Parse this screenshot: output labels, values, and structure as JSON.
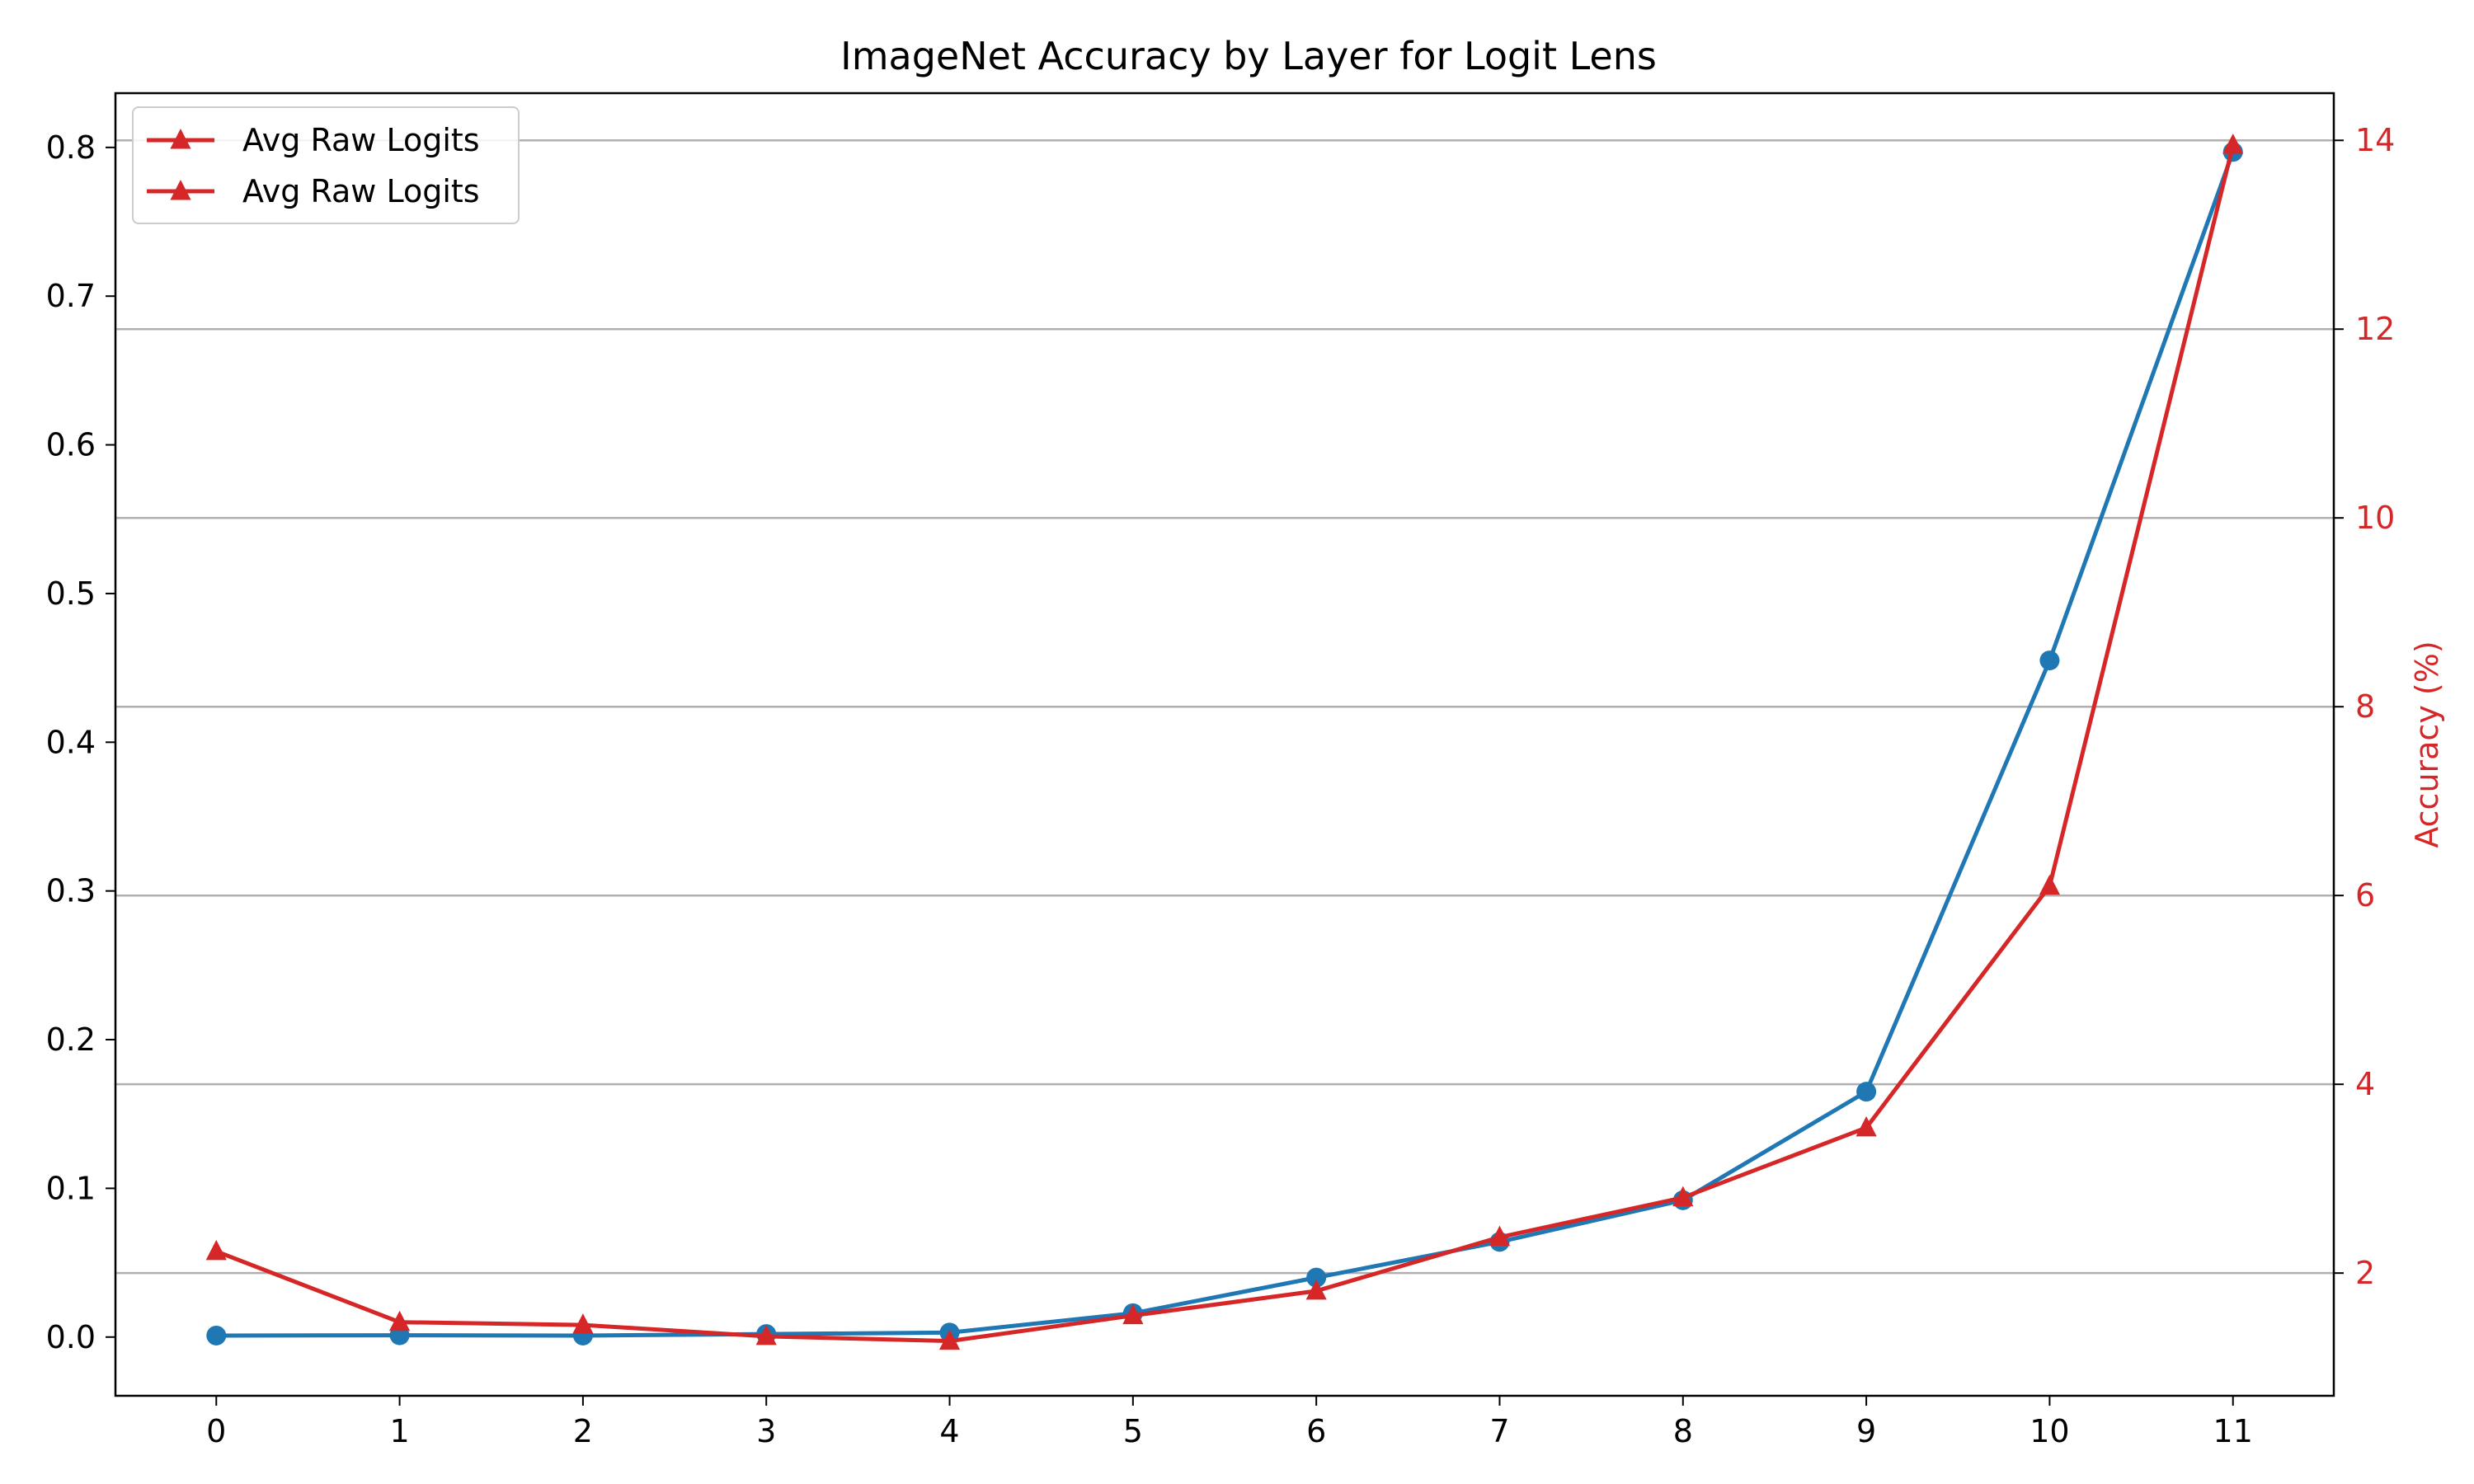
{
  "chart_data": {
    "type": "line",
    "title": "ImageNet Accuracy by Layer for Logit Lens",
    "x": [
      0,
      1,
      2,
      3,
      4,
      5,
      6,
      7,
      8,
      9,
      10,
      11
    ],
    "x_tick_labels": [
      "0",
      "1",
      "2",
      "3",
      "4",
      "5",
      "6",
      "7",
      "8",
      "9",
      "10",
      "11"
    ],
    "xlim": [
      -0.55,
      11.55
    ],
    "left_axis": {
      "ylabel": "",
      "ylim": [
        -0.0395,
        0.8365
      ],
      "ticks": [
        0.0,
        0.1,
        0.2,
        0.3,
        0.4,
        0.5,
        0.6,
        0.7,
        0.8
      ],
      "tick_labels": [
        "0.0",
        "0.1",
        "0.2",
        "0.3",
        "0.4",
        "0.5",
        "0.6",
        "0.7",
        "0.8"
      ]
    },
    "right_axis": {
      "ylabel": "Accuracy (%)",
      "ylim": [
        0.7,
        14.5
      ],
      "ticks": [
        2,
        4,
        6,
        8,
        10,
        12,
        14
      ],
      "tick_labels": [
        "2",
        "4",
        "6",
        "8",
        "10",
        "12",
        "14"
      ],
      "color": "#d62728",
      "grid": true
    },
    "series": [
      {
        "axis": "left",
        "marker": "circle",
        "color": "#1f77b4",
        "values": [
          0.001,
          0.0012,
          0.001,
          0.002,
          0.003,
          0.016,
          0.04,
          0.064,
          0.092,
          0.165,
          0.455,
          0.797
        ]
      },
      {
        "name": "Avg Raw Logits",
        "axis": "right",
        "marker": "triangle",
        "color": "#d62728",
        "values": [
          2.23,
          1.48,
          1.45,
          1.33,
          1.28,
          1.55,
          1.81,
          2.38,
          2.8,
          3.54,
          6.1,
          13.95
        ]
      }
    ],
    "legend": {
      "position": "top-left",
      "entries": [
        "Avg Raw Logits",
        "Avg Raw Logits"
      ]
    }
  }
}
